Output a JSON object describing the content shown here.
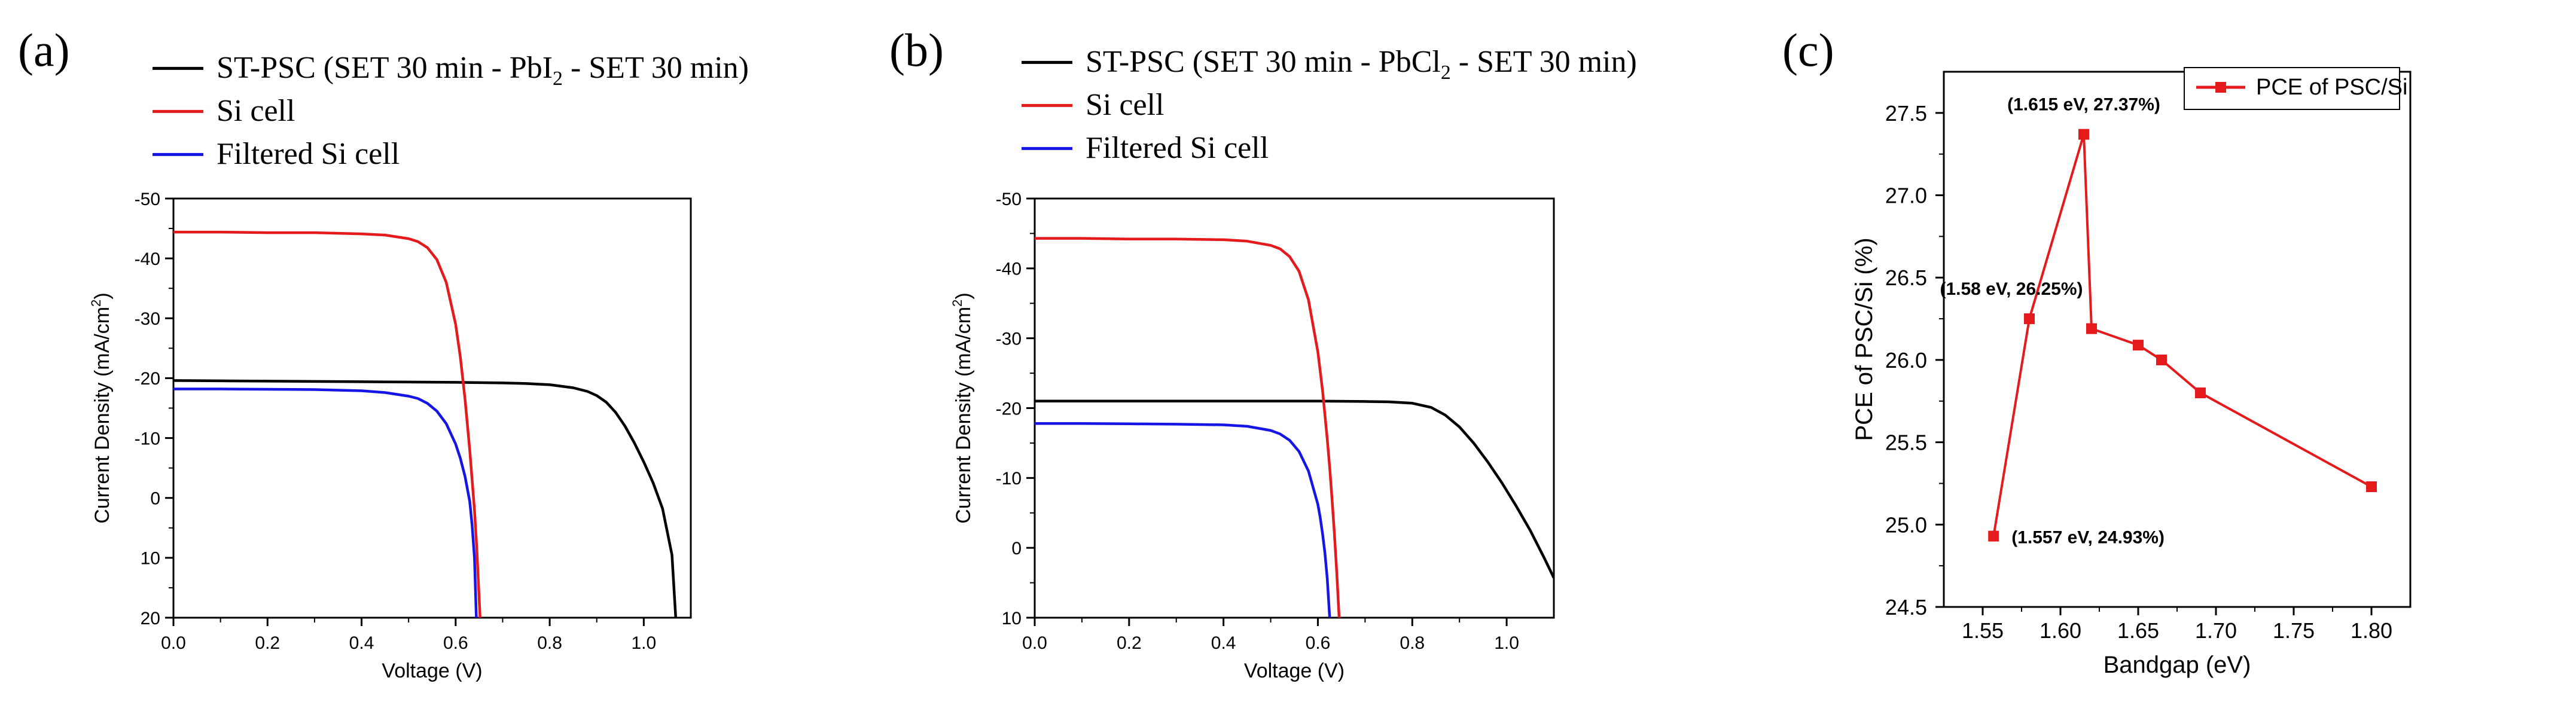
{
  "chart_data": [
    {
      "panel_label": "(a)",
      "type": "line",
      "xlabel": "Voltage (V)",
      "ylabel": "Current Density (mA/cm²)",
      "ylabel_base": "Current Density (mA/cm",
      "ylabel_sup": "2",
      "ylabel_end": ")",
      "xlim": [
        0,
        1.1
      ],
      "ylim": [
        20,
        -50
      ],
      "xticks": [
        0.0,
        0.2,
        0.4,
        0.6,
        0.8,
        1.0
      ],
      "xtick_labels": [
        "0.0",
        "0.2",
        "0.4",
        "0.6",
        "0.8",
        "1.0"
      ],
      "yticks": [
        -50,
        -40,
        -30,
        -20,
        -10,
        0,
        10,
        20
      ],
      "ytick_labels": [
        "-50",
        "-40",
        "-30",
        "-20",
        "-10",
        "0",
        "10",
        "20"
      ],
      "legend": [
        {
          "label": "ST-PSC (SET 30 min - PbI₂ - SET 30 min)",
          "base": "ST-PSC (SET 30 min - PbI",
          "sub": "2",
          "tail": " - SET 30 min)",
          "color": "#000000"
        },
        {
          "label": "Si cell",
          "base": "Si cell",
          "sub": "",
          "tail": "",
          "color": "#e41a1c"
        },
        {
          "label": "Filtered Si cell",
          "base": "Filtered Si cell",
          "sub": "",
          "tail": "",
          "color": "#1515e6"
        }
      ],
      "series": [
        {
          "name": "ST-PSC (SET 30 min - PbI₂ - SET 30 min)",
          "color": "#000000",
          "x": [
            0.0,
            0.1,
            0.2,
            0.3,
            0.4,
            0.5,
            0.6,
            0.7,
            0.75,
            0.8,
            0.85,
            0.88,
            0.9,
            0.92,
            0.94,
            0.96,
            0.98,
            1.0,
            1.02,
            1.04,
            1.06,
            1.068
          ],
          "y": [
            -19.6,
            -19.55,
            -19.5,
            -19.45,
            -19.4,
            -19.35,
            -19.3,
            -19.2,
            -19.1,
            -18.9,
            -18.4,
            -17.8,
            -17.1,
            -16.0,
            -14.3,
            -12.0,
            -9.2,
            -6.0,
            -2.5,
            1.8,
            9.5,
            20.0
          ]
        },
        {
          "name": "Si cell",
          "color": "#e41a1c",
          "x": [
            0.0,
            0.1,
            0.2,
            0.3,
            0.4,
            0.45,
            0.5,
            0.52,
            0.54,
            0.56,
            0.58,
            0.6,
            0.61,
            0.62,
            0.63,
            0.64,
            0.645,
            0.652
          ],
          "y": [
            -44.4,
            -44.4,
            -44.3,
            -44.3,
            -44.1,
            -43.9,
            -43.3,
            -42.8,
            -41.8,
            -39.8,
            -36.0,
            -29.0,
            -23.5,
            -16.5,
            -8.0,
            2.0,
            8.5,
            20.0
          ]
        },
        {
          "name": "Filtered Si cell",
          "color": "#1515e6",
          "x": [
            0.0,
            0.1,
            0.2,
            0.3,
            0.4,
            0.45,
            0.5,
            0.52,
            0.54,
            0.56,
            0.58,
            0.6,
            0.61,
            0.62,
            0.63,
            0.635,
            0.64,
            0.644
          ],
          "y": [
            -18.2,
            -18.2,
            -18.15,
            -18.1,
            -17.9,
            -17.6,
            -17.0,
            -16.6,
            -15.8,
            -14.5,
            -12.4,
            -9.0,
            -6.6,
            -3.6,
            0.6,
            4.5,
            10.0,
            20.0
          ]
        }
      ]
    },
    {
      "panel_label": "(b)",
      "type": "line",
      "xlabel": "Voltage (V)",
      "ylabel": "Current Density (mA/cm²)",
      "ylabel_base": "Current Density (mA/cm",
      "ylabel_sup": "2",
      "ylabel_end": ")",
      "xlim": [
        0,
        1.1
      ],
      "ylim": [
        10,
        -50
      ],
      "xticks": [
        0.0,
        0.2,
        0.4,
        0.6,
        0.8,
        1.0
      ],
      "xtick_labels": [
        "0.0",
        "0.2",
        "0.4",
        "0.6",
        "0.8",
        "1.0"
      ],
      "yticks": [
        -50,
        -40,
        -30,
        -20,
        -10,
        0,
        10
      ],
      "ytick_labels": [
        "-50",
        "-40",
        "-30",
        "-20",
        "-10",
        "0",
        "10"
      ],
      "legend": [
        {
          "label": "ST-PSC (SET 30 min - PbCl₂ - SET 30 min)",
          "base": "ST-PSC (SET 30 min - PbCl",
          "sub": "2",
          "tail": " - SET 30 min)",
          "color": "#000000"
        },
        {
          "label": "Si cell",
          "base": "Si cell",
          "sub": "",
          "tail": "",
          "color": "#e41a1c"
        },
        {
          "label": "Filtered Si cell",
          "base": "Filtered Si cell",
          "sub": "",
          "tail": "",
          "color": "#1515e6"
        }
      ],
      "series": [
        {
          "name": "ST-PSC (SET 30 min - PbCl₂ - SET 30 min)",
          "color": "#000000",
          "x": [
            0.0,
            0.2,
            0.4,
            0.6,
            0.7,
            0.75,
            0.8,
            0.84,
            0.87,
            0.9,
            0.93,
            0.96,
            0.99,
            1.02,
            1.05,
            1.08,
            1.1
          ],
          "y": [
            -21.0,
            -21.0,
            -21.0,
            -21.0,
            -20.95,
            -20.9,
            -20.7,
            -20.1,
            -19.0,
            -17.3,
            -15.0,
            -12.3,
            -9.3,
            -6.0,
            -2.5,
            1.5,
            4.3
          ]
        },
        {
          "name": "Si cell",
          "color": "#e41a1c",
          "x": [
            0.0,
            0.1,
            0.2,
            0.3,
            0.4,
            0.45,
            0.5,
            0.52,
            0.54,
            0.56,
            0.58,
            0.6,
            0.61,
            0.62,
            0.625,
            0.63,
            0.635,
            0.64,
            0.645
          ],
          "y": [
            -44.3,
            -44.3,
            -44.2,
            -44.2,
            -44.1,
            -43.9,
            -43.3,
            -42.8,
            -41.7,
            -39.6,
            -35.5,
            -28.0,
            -22.5,
            -15.5,
            -11.5,
            -7.0,
            -2.0,
            3.5,
            10.0
          ]
        },
        {
          "name": "Filtered Si cell",
          "color": "#1515e6",
          "x": [
            0.0,
            0.1,
            0.2,
            0.3,
            0.4,
            0.45,
            0.5,
            0.52,
            0.54,
            0.56,
            0.58,
            0.6,
            0.605,
            0.61,
            0.615,
            0.62,
            0.625
          ],
          "y": [
            -17.8,
            -17.8,
            -17.75,
            -17.7,
            -17.6,
            -17.4,
            -16.8,
            -16.3,
            -15.4,
            -13.8,
            -11.0,
            -6.2,
            -4.3,
            -2.0,
            0.8,
            4.5,
            10.0
          ]
        }
      ]
    },
    {
      "panel_label": "(c)",
      "type": "line",
      "xlabel": "Bandgap (eV)",
      "ylabel": "PCE of PSC/Si (%)",
      "xlim": [
        1.525,
        1.825
      ],
      "ylim": [
        24.5,
        27.75
      ],
      "xticks": [
        1.55,
        1.6,
        1.65,
        1.7,
        1.75,
        1.8
      ],
      "xtick_labels": [
        "1.55",
        "1.60",
        "1.65",
        "1.70",
        "1.75",
        "1.80"
      ],
      "yticks": [
        24.5,
        25.0,
        25.5,
        26.0,
        26.5,
        27.0,
        27.5
      ],
      "ytick_labels": [
        "24.5",
        "25.0",
        "25.5",
        "26.0",
        "26.5",
        "27.0",
        "27.5"
      ],
      "legend": [
        {
          "label": "PCE of PSC/Si",
          "color": "#e41a1c"
        }
      ],
      "series": [
        {
          "name": "PCE of PSC/Si",
          "color": "#e41a1c",
          "x": [
            1.557,
            1.58,
            1.615,
            1.62,
            1.65,
            1.665,
            1.69,
            1.8
          ],
          "y": [
            24.93,
            26.25,
            27.37,
            26.19,
            26.09,
            26.0,
            25.8,
            25.23
          ]
        }
      ],
      "annotations": [
        {
          "text": "(1.615 eV, 27.37%)",
          "x": 1.615,
          "y": 27.37,
          "anchor": "above"
        },
        {
          "text": "(1.58 eV, 26.25%)",
          "x": 1.58,
          "y": 26.25,
          "anchor": "left-above"
        },
        {
          "text": "(1.557 eV, 24.93%)",
          "x": 1.557,
          "y": 24.93,
          "anchor": "right"
        }
      ]
    }
  ]
}
